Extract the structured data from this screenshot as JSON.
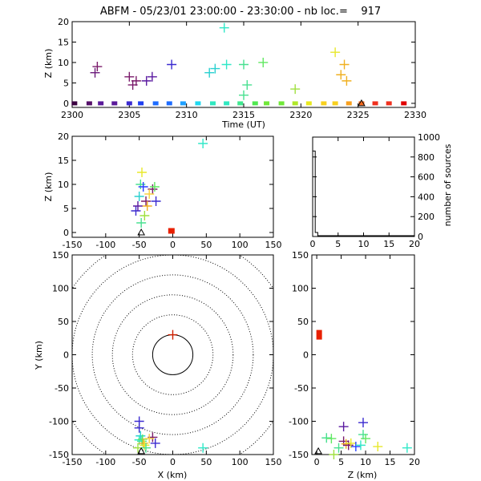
{
  "title": "ABFM - 05/23/01 23:00:00 - 23:30:00 - nb loc.=    917",
  "colors": {
    "rainbow": [
      "#3a0040",
      "#55106a",
      "#5a1a9a",
      "#3a2ad0",
      "#1f3ff0",
      "#1e6cff",
      "#1ea0ff",
      "#1ed8f0",
      "#30e8c0",
      "#40e890",
      "#50e850",
      "#70e838",
      "#b0e828",
      "#e8e81e",
      "#f8d01e",
      "#f8a01e",
      "#f86a1e",
      "#f0301e",
      "#e00000"
    ],
    "cross_colors": [
      "#6a1a7a",
      "#7a1a6a",
      "#5a1aa0",
      "#3a2ad0",
      "#2a40ff",
      "#2ad0d0",
      "#30e8c8",
      "#48e090",
      "#60e860",
      "#a0e040",
      "#e8e82a",
      "#f0b020",
      "#f8d040"
    ],
    "origin_marker": "#e82000",
    "station_marker": "#000000"
  },
  "panels": {
    "time_z": {
      "xlabel": "Time (UT)",
      "ylabel": "Z (km)",
      "xticks": [
        "2300",
        "2305",
        "2310",
        "2315",
        "2320",
        "2325",
        "2330"
      ],
      "yticks": [
        "0",
        "5",
        "10",
        "15",
        "20"
      ]
    },
    "x_z": {
      "ylabel": "Z (km)",
      "xticks": [
        "-150",
        "-100",
        "-50",
        "0",
        "50",
        "100",
        "150"
      ],
      "yticks": [
        "0",
        "5",
        "10",
        "15",
        "20"
      ]
    },
    "histogram": {
      "ylabel": "number of sources",
      "xticks": [
        "0",
        "5",
        "10",
        "15",
        "20"
      ],
      "yticks": [
        "0",
        "200",
        "400",
        "600",
        "800",
        "1000"
      ]
    },
    "plan": {
      "xlabel": "X (km)",
      "ylabel": "Y (km)",
      "xticks": [
        "-150",
        "-100",
        "-50",
        "0",
        "50",
        "100",
        "150"
      ],
      "yticks": [
        "-150",
        "-100",
        "-50",
        "0",
        "50",
        "100",
        "150"
      ]
    },
    "z_y": {
      "xlabel": "Z (km)",
      "xticks": [
        "0",
        "5",
        "10",
        "15",
        "20"
      ],
      "yticks": [
        "-150",
        "-100",
        "-50",
        "0",
        "50",
        "100",
        "150"
      ]
    }
  },
  "chart_data": [
    {
      "panel": "time_z",
      "type": "scatter",
      "xlim": [
        2300,
        2330
      ],
      "ylim": [
        -1,
        20
      ],
      "points": [
        {
          "t": 2302.0,
          "z": 7.5,
          "c": 0
        },
        {
          "t": 2302.2,
          "z": 9.0,
          "c": 1
        },
        {
          "t": 2305.0,
          "z": 6.5,
          "c": 1
        },
        {
          "t": 2305.3,
          "z": 4.5,
          "c": 1
        },
        {
          "t": 2305.6,
          "z": 5.5,
          "c": 1
        },
        {
          "t": 2306.5,
          "z": 5.5,
          "c": 2
        },
        {
          "t": 2307.0,
          "z": 6.5,
          "c": 2
        },
        {
          "t": 2308.7,
          "z": 9.5,
          "c": 3
        },
        {
          "t": 2312.0,
          "z": 7.5,
          "c": 5
        },
        {
          "t": 2312.5,
          "z": 8.5,
          "c": 5
        },
        {
          "t": 2313.3,
          "z": 18.5,
          "c": 6
        },
        {
          "t": 2313.5,
          "z": 9.5,
          "c": 6
        },
        {
          "t": 2315.0,
          "z": 9.5,
          "c": 7
        },
        {
          "t": 2315.0,
          "z": 2.0,
          "c": 7
        },
        {
          "t": 2315.3,
          "z": 4.5,
          "c": 7
        },
        {
          "t": 2316.7,
          "z": 10.0,
          "c": 8
        },
        {
          "t": 2319.5,
          "z": 3.5,
          "c": 9
        },
        {
          "t": 2323.0,
          "z": 12.5,
          "c": 10
        },
        {
          "t": 2323.5,
          "z": 7.0,
          "c": 11
        },
        {
          "t": 2323.8,
          "z": 9.5,
          "c": 11
        },
        {
          "t": 2324.0,
          "z": 5.5,
          "c": 11
        }
      ],
      "ground_times": [
        2300.2,
        2301.5,
        2302.5,
        2303.7,
        2305.0,
        2306.0,
        2307.3,
        2308.5,
        2309.7,
        2311.0,
        2312.3,
        2313.5,
        2314.7,
        2316.0,
        2317.0,
        2318.3,
        2319.5,
        2320.7,
        2322.0,
        2323.0,
        2324.2,
        2325.3,
        2326.5,
        2327.7,
        2329.0
      ],
      "station_t": 2325.3
    },
    {
      "panel": "x_z",
      "type": "scatter",
      "xlim": [
        -150,
        150
      ],
      "ylim": [
        -1,
        20
      ],
      "points": [
        {
          "x": -55,
          "z": 4.5,
          "c": 3
        },
        {
          "x": -52,
          "z": 5.5,
          "c": 2
        },
        {
          "x": -50,
          "z": 7.5,
          "c": 5
        },
        {
          "x": -48,
          "z": 10.0,
          "c": 7
        },
        {
          "x": -46,
          "z": 12.5,
          "c": 10
        },
        {
          "x": -44,
          "z": 9.5,
          "c": 4
        },
        {
          "x": -40,
          "z": 6.5,
          "c": 1
        },
        {
          "x": -38,
          "z": 5.5,
          "c": 11
        },
        {
          "x": -42,
          "z": 3.5,
          "c": 9
        },
        {
          "x": -47,
          "z": 2.0,
          "c": 7
        },
        {
          "x": -30,
          "z": 9.0,
          "c": 1
        },
        {
          "x": -27,
          "z": 9.5,
          "c": 8
        },
        {
          "x": -25,
          "z": 6.5,
          "c": 3
        },
        {
          "x": -35,
          "z": 8.0,
          "c": 12
        },
        {
          "x": 45,
          "z": 18.5,
          "c": 6
        }
      ],
      "origin": {
        "x": -2,
        "z": 0
      },
      "station": {
        "x": -47,
        "z": 0
      }
    },
    {
      "panel": "histogram",
      "type": "line",
      "x": [
        0,
        0.5,
        0.5,
        1.0,
        1.0,
        20
      ],
      "y": [
        860,
        860,
        40,
        40,
        8,
        8
      ],
      "xlim": [
        0,
        20
      ],
      "ylim": [
        0,
        1000
      ]
    },
    {
      "panel": "plan",
      "type": "scatter",
      "xlim": [
        -150,
        150
      ],
      "ylim": [
        -150,
        150
      ],
      "ring_radii": [
        30,
        60,
        90,
        120,
        150,
        180
      ],
      "points": [
        {
          "x": -50,
          "y": -100,
          "c": 3
        },
        {
          "x": -50,
          "y": -110,
          "c": 3
        },
        {
          "x": -48,
          "y": -122,
          "c": 5
        },
        {
          "x": -50,
          "y": -128,
          "c": 6
        },
        {
          "x": -46,
          "y": -130,
          "c": 7
        },
        {
          "x": -45,
          "y": -127,
          "c": 8
        },
        {
          "x": -44,
          "y": -133,
          "c": 11
        },
        {
          "x": -52,
          "y": -140,
          "c": 9
        },
        {
          "x": -42,
          "y": -136,
          "c": 10
        },
        {
          "x": -40,
          "y": -140,
          "c": 7
        },
        {
          "x": -30,
          "y": -124,
          "c": 1
        },
        {
          "x": -26,
          "y": -133,
          "c": 3
        },
        {
          "x": -35,
          "y": -126,
          "c": 12
        },
        {
          "x": 45,
          "y": -140,
          "c": 6
        }
      ],
      "origin": {
        "x": 0,
        "y": 30
      },
      "station": {
        "x": -47,
        "y": -145
      }
    },
    {
      "panel": "z_y",
      "type": "scatter",
      "xlim": [
        -1,
        20
      ],
      "ylim": [
        -150,
        150
      ],
      "points": [
        {
          "z": 2.0,
          "y": -125,
          "c": 7
        },
        {
          "z": 3.0,
          "y": -126,
          "c": 8
        },
        {
          "z": 3.5,
          "y": -150,
          "c": 9
        },
        {
          "z": 4.5,
          "y": -140,
          "c": 7
        },
        {
          "z": 5.5,
          "y": -108,
          "c": 2
        },
        {
          "z": 5.5,
          "y": -130,
          "c": 1
        },
        {
          "z": 6.0,
          "y": -134,
          "c": 11
        },
        {
          "z": 6.5,
          "y": -136,
          "c": 1
        },
        {
          "z": 7.0,
          "y": -133,
          "c": 10
        },
        {
          "z": 8.0,
          "y": -138,
          "c": 4
        },
        {
          "z": 9.0,
          "y": -136,
          "c": 6
        },
        {
          "z": 9.5,
          "y": -102,
          "c": 3
        },
        {
          "z": 9.5,
          "y": -120,
          "c": 7
        },
        {
          "z": 10.0,
          "y": -126,
          "c": 8
        },
        {
          "z": 12.5,
          "y": -138,
          "c": 10
        },
        {
          "z": 18.5,
          "y": -140,
          "c": 6
        }
      ],
      "origin": {
        "z": 0.5,
        "y": 30
      },
      "station": {
        "z": 0,
        "y": -145
      }
    }
  ]
}
